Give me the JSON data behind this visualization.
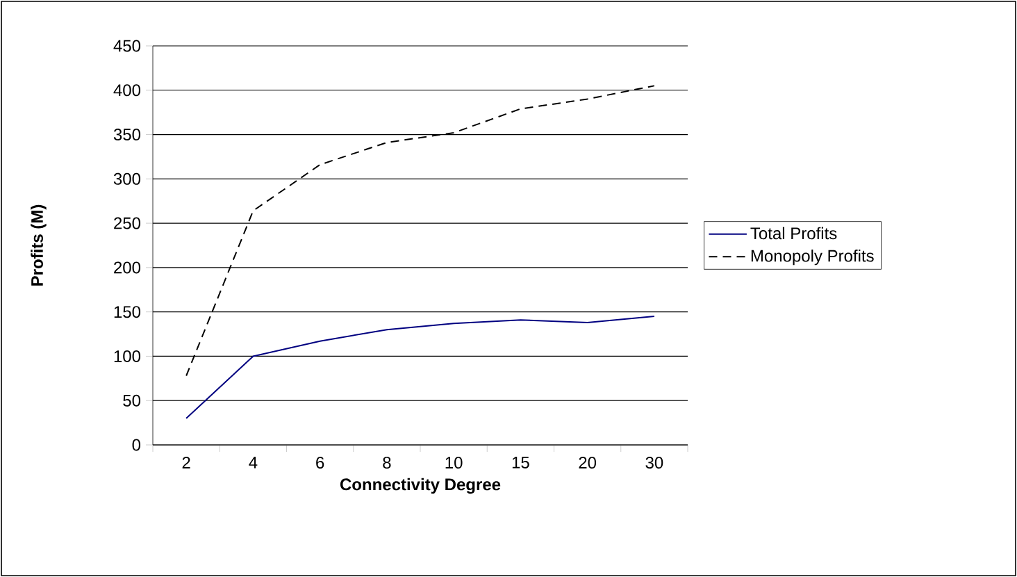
{
  "chart_data": {
    "type": "line",
    "xlabel": "Connectivity Degree",
    "ylabel": "Profits (M)",
    "categories": [
      "2",
      "4",
      "6",
      "8",
      "10",
      "15",
      "20",
      "30"
    ],
    "series": [
      {
        "name": "Total Profits",
        "color": "#000080",
        "line_style": "solid",
        "values": [
          30,
          100,
          117,
          130,
          137,
          141,
          138,
          145
        ]
      },
      {
        "name": "Monopoly Profits",
        "color": "#000000",
        "line_style": "dashed",
        "values": [
          78,
          264,
          316,
          341,
          352,
          379,
          390,
          405
        ]
      }
    ],
    "ylim": [
      0,
      450
    ],
    "yticks": [
      0,
      50,
      100,
      150,
      200,
      250,
      300,
      350,
      400,
      450
    ],
    "grid": "y",
    "legend": "right",
    "marker": "none"
  }
}
